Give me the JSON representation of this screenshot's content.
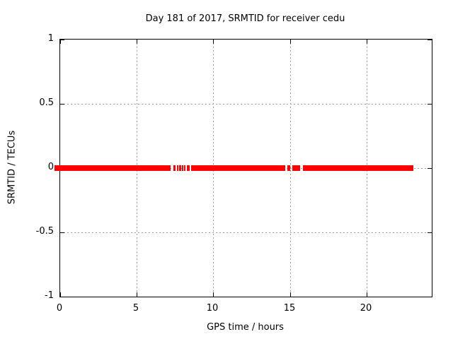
{
  "page": {
    "background_color": "#ffffff",
    "text_color": "#000000",
    "grid_color": "#9a9a9a"
  },
  "chart_data": {
    "type": "line",
    "title": "Day 181 of 2017, SRMTID for receiver cedu",
    "xlabel": "GPS time / hours",
    "ylabel": "SRMTID / TECUs",
    "xlim": [
      0,
      24.25
    ],
    "ylim": [
      -1,
      1
    ],
    "xticks": [
      0,
      5,
      10,
      15,
      20
    ],
    "yticks": [
      -1,
      -0.5,
      0,
      0.5,
      1
    ],
    "grid": true,
    "legend": "none",
    "series": [
      {
        "color": "#ff0000",
        "y_value": 0,
        "x_segments_hours": [
          [
            0.0,
            7.19
          ],
          [
            7.39,
            7.52
          ],
          [
            7.6,
            7.7
          ],
          [
            7.78,
            7.9
          ],
          [
            7.95,
            8.04
          ],
          [
            8.09,
            8.2
          ],
          [
            8.28,
            8.45
          ],
          [
            8.56,
            14.7
          ],
          [
            14.84,
            15.03
          ],
          [
            15.15,
            15.67
          ],
          [
            15.86,
            23.05
          ]
        ]
      }
    ]
  }
}
